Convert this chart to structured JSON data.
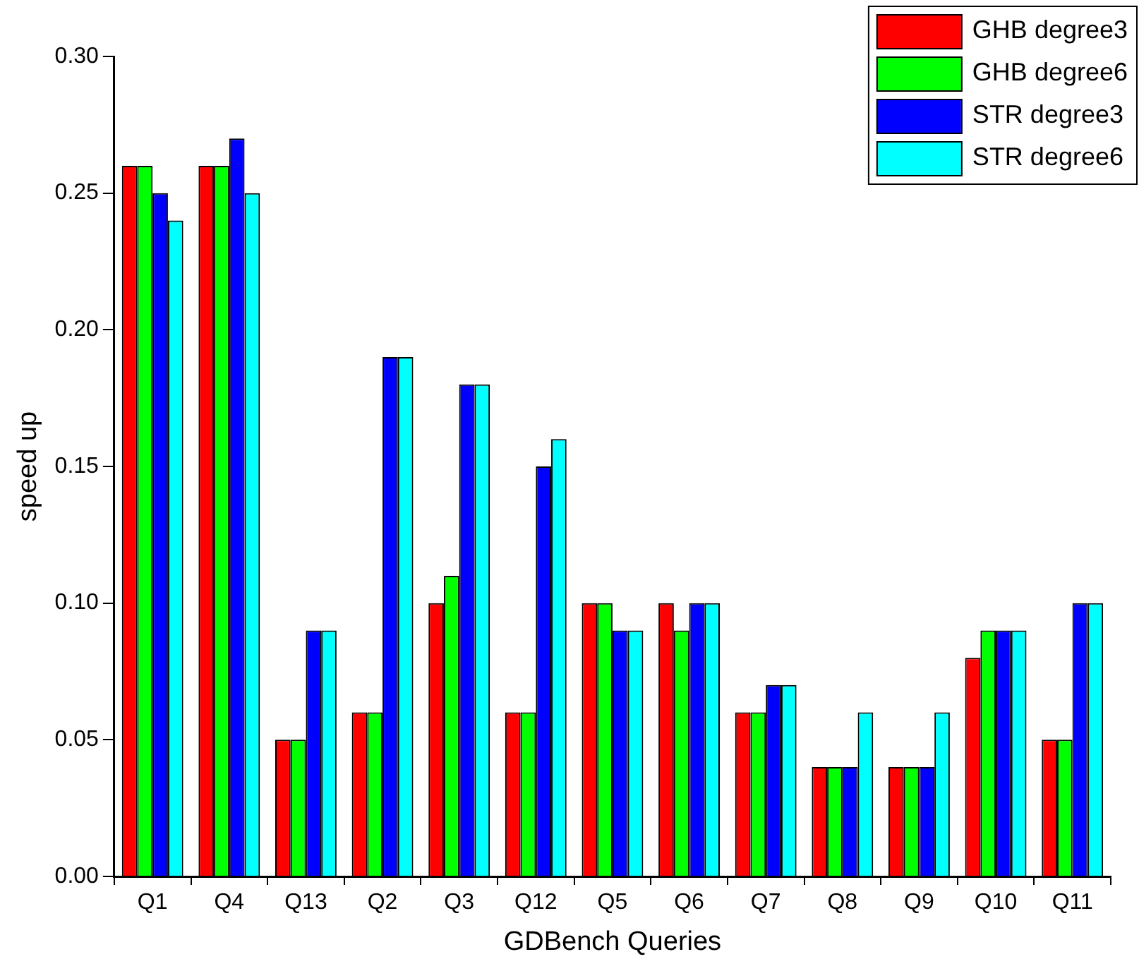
{
  "chart_data": {
    "type": "bar",
    "xlabel": "GDBench Queries",
    "ylabel": "speed up",
    "categories": [
      "Q1",
      "Q4",
      "Q13",
      "Q2",
      "Q3",
      "Q12",
      "Q5",
      "Q6",
      "Q7",
      "Q8",
      "Q9",
      "Q10",
      "Q11"
    ],
    "series": [
      {
        "name": "GHB degree3",
        "color": "#ff0000",
        "values": [
          0.26,
          0.26,
          0.05,
          0.06,
          0.1,
          0.06,
          0.1,
          0.1,
          0.06,
          0.04,
          0.04,
          0.08,
          0.05
        ]
      },
      {
        "name": "GHB degree6",
        "color": "#00ff00",
        "values": [
          0.26,
          0.26,
          0.05,
          0.06,
          0.11,
          0.06,
          0.1,
          0.09,
          0.06,
          0.04,
          0.04,
          0.09,
          0.05
        ]
      },
      {
        "name": "STR degree3",
        "color": "#0000ff",
        "values": [
          0.25,
          0.27,
          0.09,
          0.19,
          0.18,
          0.15,
          0.09,
          0.1,
          0.07,
          0.04,
          0.04,
          0.09,
          0.1
        ]
      },
      {
        "name": "STR degree6",
        "color": "#00ffff",
        "values": [
          0.24,
          0.25,
          0.09,
          0.19,
          0.18,
          0.16,
          0.09,
          0.1,
          0.07,
          0.06,
          0.06,
          0.09,
          0.1
        ]
      }
    ],
    "ylim": [
      0,
      0.3
    ],
    "yticks": [
      {
        "value": 0,
        "label": "0.00"
      },
      {
        "value": 0.05,
        "label": "0.05"
      },
      {
        "value": 0.1,
        "label": "0.10"
      },
      {
        "value": 0.15,
        "label": "0.15"
      },
      {
        "value": 0.2,
        "label": "0.20"
      },
      {
        "value": 0.25,
        "label": "0.25"
      },
      {
        "value": 0.3,
        "label": "0.30"
      }
    ],
    "grid": false,
    "legend": "top right"
  }
}
